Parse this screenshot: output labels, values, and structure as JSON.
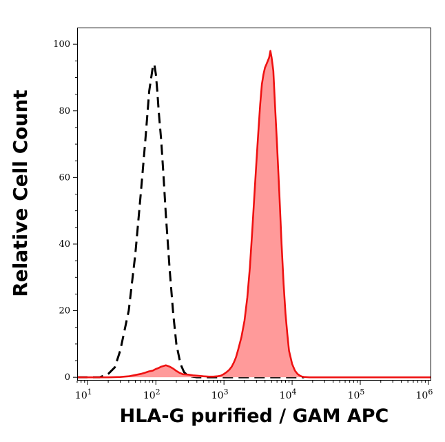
{
  "chart_data": {
    "type": "area",
    "title": "",
    "xlabel": "HLA-G purified / GAM APC",
    "ylabel": "Relative Cell Count",
    "x_scale": "log",
    "xlim": [
      7,
      1100000
    ],
    "ylim": [
      -1,
      105
    ],
    "x_ticks": [
      10,
      100,
      1000,
      10000,
      100000,
      1000000
    ],
    "x_tick_labels": [
      {
        "base": "10",
        "exp": "1"
      },
      {
        "base": "10",
        "exp": "2"
      },
      {
        "base": "10",
        "exp": "3"
      },
      {
        "base": "10",
        "exp": "4"
      },
      {
        "base": "10",
        "exp": "5"
      },
      {
        "base": "10",
        "exp": "6"
      }
    ],
    "y_ticks": [
      0,
      20,
      40,
      60,
      80,
      100
    ],
    "y_tick_labels": [
      "0",
      "20",
      "40",
      "60",
      "80",
      "100"
    ],
    "grid": false,
    "legend": "none",
    "series": [
      {
        "style": "dashed",
        "color": "#000000",
        "fill": "none",
        "x": [
          7,
          15,
          20,
          25,
          30,
          40,
          50,
          60,
          70,
          80,
          90,
          95,
          100,
          105,
          110,
          120,
          130,
          140,
          160,
          180,
          200,
          230,
          260,
          300,
          400,
          700,
          1500,
          3000,
          6000,
          10000,
          15000
        ],
        "y": [
          0,
          0,
          1,
          3,
          8,
          20,
          37,
          55,
          71,
          86,
          93,
          94,
          91,
          86,
          80,
          71,
          60,
          49,
          32,
          19,
          10,
          4,
          1.5,
          0.4,
          0,
          0,
          0,
          0,
          0,
          0,
          0
        ]
      },
      {
        "style": "solid",
        "color": "#ee1111",
        "fill": "#ff9a9a",
        "x": [
          7,
          20,
          30,
          40,
          50,
          60,
          70,
          80,
          90,
          100,
          110,
          120,
          130,
          140,
          150,
          160,
          180,
          200,
          220,
          250,
          300,
          350,
          400,
          500,
          600,
          700,
          800,
          900,
          1000,
          1100,
          1200,
          1300,
          1400,
          1500,
          1600,
          1800,
          2000,
          2200,
          2400,
          2600,
          2800,
          3000,
          3200,
          3400,
          3600,
          3800,
          4000,
          4200,
          4400,
          4600,
          4800,
          5000,
          5300,
          5600,
          6000,
          6500,
          7000,
          7500,
          8000,
          8500,
          9000,
          10000,
          11000,
          12000,
          13000,
          14000,
          15000,
          18000,
          25000,
          40000,
          80000,
          200000,
          500000,
          1100000
        ],
        "y": [
          0,
          0,
          0.1,
          0.3,
          0.7,
          1.0,
          1.4,
          1.8,
          2.0,
          2.5,
          2.8,
          3.2,
          3.4,
          3.6,
          3.4,
          3.2,
          2.6,
          1.9,
          1.4,
          0.9,
          0.8,
          0.6,
          0.5,
          0.3,
          0.2,
          0.2,
          0.3,
          0.5,
          1.0,
          1.6,
          2.3,
          3.2,
          4.5,
          6.0,
          8.0,
          12,
          17,
          24,
          33,
          44,
          55,
          65,
          74,
          82,
          88,
          91,
          93,
          94,
          95,
          96,
          98,
          96,
          92,
          82,
          70,
          55,
          40,
          28,
          19,
          13,
          8,
          4,
          2,
          1.0,
          0.5,
          0.2,
          0.1,
          0,
          0,
          0,
          0,
          0,
          0,
          0
        ]
      }
    ]
  }
}
